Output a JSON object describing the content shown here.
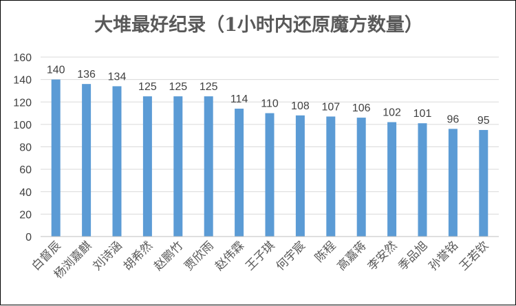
{
  "chart_data": {
    "type": "bar",
    "title": "大堆最好纪录（1小时内还原魔方数量）",
    "xlabel": "",
    "ylabel": "",
    "ylim": [
      0,
      160
    ],
    "yticks": [
      0,
      20,
      40,
      60,
      80,
      100,
      120,
      140,
      160
    ],
    "grid": true,
    "legend": "none",
    "data_labels": true,
    "categories": [
      "白督辰",
      "杨浏嘉麒",
      "刘诗涵",
      "胡希然",
      "赵鹏竹",
      "贾欣雨",
      "赵伟霖",
      "王子琪",
      "何宇宸",
      "陈程",
      "高嘉蒋",
      "李安然",
      "季品旭",
      "孙誉铭",
      "王若钦"
    ],
    "values": [
      140,
      136,
      134,
      125,
      125,
      125,
      114,
      110,
      108,
      107,
      106,
      102,
      101,
      96,
      95
    ],
    "colors": {
      "bar": "#5b9bd5",
      "grid": "#d9d9d9",
      "axis": "#bfbfbf",
      "text": "#404040",
      "title": "#595959"
    }
  }
}
